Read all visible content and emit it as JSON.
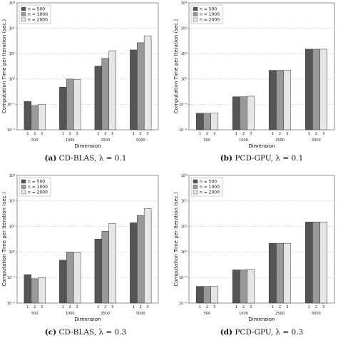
{
  "colors": {
    "series": [
      "#555555",
      "#999999",
      "#e6e6e6"
    ],
    "grid": "#bbbbbb",
    "frame": "#666666"
  },
  "chart_data": [
    {
      "type": "bar",
      "caption_label": "(a)",
      "caption_text": "CD-BLAS, λ = 0.1",
      "xlabel": "Dimension",
      "ylabel": "Computation Time per Iteration (sec.)",
      "categories": [
        "500",
        "1000",
        "2500",
        "5000"
      ],
      "bar_labels": [
        "1",
        "2",
        "3"
      ],
      "y_scale": "log",
      "ylim": [
        0.01,
        1000
      ],
      "y_ticks": [
        0.01,
        0.1,
        1,
        10,
        100,
        1000
      ],
      "y_tick_labels": [
        "10⁻²",
        "10⁻¹",
        "10⁰",
        "10¹",
        "10²",
        "10³"
      ],
      "grid": true,
      "legend_position": "top-left",
      "series": [
        {
          "name": "n = 500",
          "values": [
            0.13,
            0.48,
            3.2,
            14
          ]
        },
        {
          "name": "n = 1000",
          "values": [
            0.09,
            1.0,
            6.5,
            27
          ]
        },
        {
          "name": "n = 2000",
          "values": [
            0.1,
            0.95,
            13,
            50
          ]
        }
      ]
    },
    {
      "type": "bar",
      "caption_label": "(b)",
      "caption_text": "PCD-GPU, λ = 0.1",
      "xlabel": "Dimension",
      "ylabel": "Computation Time per Iteration (sec.)",
      "categories": [
        "500",
        "1000",
        "2500",
        "5000"
      ],
      "bar_labels": [
        "1",
        "2",
        "3"
      ],
      "y_scale": "log",
      "ylim": [
        0.01,
        1000
      ],
      "y_ticks": [
        0.01,
        0.1,
        1,
        10,
        100,
        1000
      ],
      "y_tick_labels": [
        "10⁻²",
        "10⁻¹",
        "10⁰",
        "10¹",
        "10²",
        "10³"
      ],
      "grid": true,
      "legend_position": "top-left",
      "series": [
        {
          "name": "n = 500",
          "values": [
            0.045,
            0.2,
            2.2,
            15
          ]
        },
        {
          "name": "n = 1000",
          "values": [
            0.045,
            0.2,
            2.2,
            15
          ]
        },
        {
          "name": "n = 2000",
          "values": [
            0.045,
            0.21,
            2.2,
            15
          ]
        }
      ]
    },
    {
      "type": "bar",
      "caption_label": "(c)",
      "caption_text": "CD-BLAS, λ = 0.3",
      "xlabel": "Dimension",
      "ylabel": "Computation Time per Iteration (sec.)",
      "categories": [
        "500",
        "1000",
        "2500",
        "5000"
      ],
      "bar_labels": [
        "1",
        "2",
        "3"
      ],
      "y_scale": "log",
      "ylim": [
        0.01,
        1000
      ],
      "y_ticks": [
        0.01,
        0.1,
        1,
        10,
        100,
        1000
      ],
      "y_tick_labels": [
        "10⁻²",
        "10⁻¹",
        "10⁰",
        "10¹",
        "10²",
        "10³"
      ],
      "grid": true,
      "legend_position": "top-left",
      "series": [
        {
          "name": "n = 500",
          "values": [
            0.13,
            0.48,
            3.2,
            14
          ]
        },
        {
          "name": "n = 1000",
          "values": [
            0.09,
            1.0,
            6.5,
            27
          ]
        },
        {
          "name": "n = 2000",
          "values": [
            0.1,
            0.95,
            13,
            50
          ]
        }
      ]
    },
    {
      "type": "bar",
      "caption_label": "(d)",
      "caption_text": "PCD-GPU, λ = 0.3",
      "xlabel": "Dimension",
      "ylabel": "Computation Time per Iteration (sec.)",
      "categories": [
        "500",
        "1000",
        "2500",
        "5000"
      ],
      "bar_labels": [
        "1",
        "2",
        "3"
      ],
      "y_scale": "log",
      "ylim": [
        0.01,
        1000
      ],
      "y_ticks": [
        0.01,
        0.1,
        1,
        10,
        100,
        1000
      ],
      "y_tick_labels": [
        "10⁻²",
        "10⁻¹",
        "10⁰",
        "10¹",
        "10²",
        "10³"
      ],
      "grid": true,
      "legend_position": "top-left",
      "series": [
        {
          "name": "n = 500",
          "values": [
            0.045,
            0.2,
            2.2,
            15
          ]
        },
        {
          "name": "n = 1000",
          "values": [
            0.045,
            0.2,
            2.2,
            15
          ]
        },
        {
          "name": "n = 2000",
          "values": [
            0.045,
            0.21,
            2.2,
            15
          ]
        }
      ]
    }
  ]
}
